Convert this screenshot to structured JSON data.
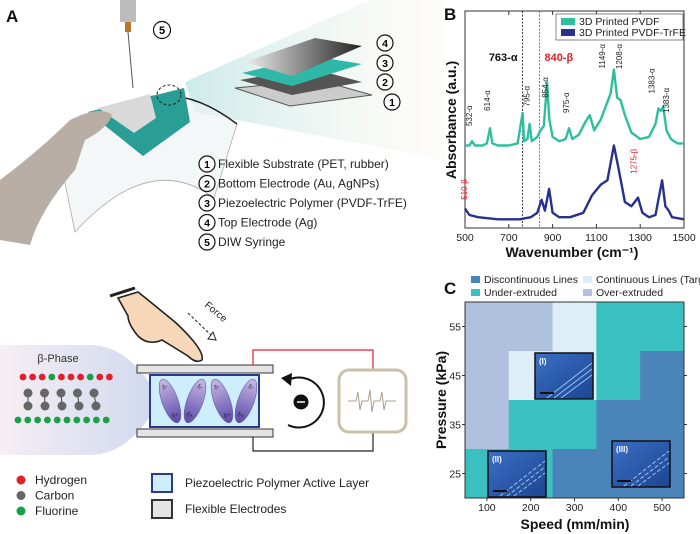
{
  "panels": {
    "a": "A",
    "b": "B",
    "c": "C"
  },
  "panel_a": {
    "syringe_number": "5",
    "layer_numbers": [
      "4",
      "3",
      "2",
      "1"
    ],
    "legend": [
      {
        "num": "1",
        "text": "Flexible Substrate (PET, rubber)"
      },
      {
        "num": "2",
        "text": "Bottom Electrode (Au, AgNPs)"
      },
      {
        "num": "3",
        "text": "Piezoelectric Polymer (PVDF-TrFE)"
      },
      {
        "num": "4",
        "text": "Top Electrode (Ag)"
      },
      {
        "num": "5",
        "text": "DIW Syringe"
      }
    ]
  },
  "schematic": {
    "force_label": "Force",
    "phase_label": "β-Phase",
    "dipole_minus": "δ-",
    "dipole_plus": "δ+",
    "atom_legend": [
      {
        "name": "Hydrogen",
        "color": "#e0202a"
      },
      {
        "name": "Carbon",
        "color": "#666666"
      },
      {
        "name": "Fluorine",
        "color": "#1aa046"
      }
    ],
    "layer_legend": [
      {
        "name": "Piezoelectric Polymer Active Layer",
        "fill": "#cdeefa",
        "stroke": "#2b3a8f"
      },
      {
        "name": "Flexible Electrodes",
        "fill": "#e4e4e4",
        "stroke": "#333333"
      }
    ]
  },
  "chart_data": [
    {
      "type": "line",
      "xlabel": "Wavenumber (cm⁻¹)",
      "ylabel": "Absorbance (a.u.)",
      "xlim": [
        500,
        1500
      ],
      "xticks": [
        500,
        700,
        900,
        1100,
        1300,
        1500
      ],
      "legend_position": "top-right",
      "series": [
        {
          "name": "3D Printed PVDF",
          "color": "#2dbf9e",
          "x": [
            500,
            520,
            532,
            545,
            580,
            600,
            614,
            625,
            650,
            700,
            740,
            763,
            770,
            785,
            795,
            805,
            830,
            845,
            860,
            875,
            885,
            900,
            930,
            960,
            975,
            990,
            1020,
            1050,
            1070,
            1090,
            1120,
            1150,
            1165,
            1180,
            1195,
            1210,
            1230,
            1260,
            1300,
            1340,
            1370,
            1383,
            1395,
            1405,
            1420,
            1440,
            1470,
            1500
          ],
          "y": [
            0.38,
            0.38,
            0.4,
            0.38,
            0.38,
            0.39,
            0.46,
            0.39,
            0.38,
            0.38,
            0.39,
            0.53,
            0.4,
            0.41,
            0.48,
            0.4,
            0.42,
            0.45,
            0.47,
            0.67,
            0.5,
            0.42,
            0.4,
            0.41,
            0.46,
            0.41,
            0.43,
            0.49,
            0.52,
            0.45,
            0.5,
            0.58,
            0.62,
            0.73,
            0.6,
            0.59,
            0.52,
            0.44,
            0.41,
            0.42,
            0.48,
            0.55,
            0.54,
            0.56,
            0.45,
            0.41,
            0.39,
            0.39
          ]
        },
        {
          "name": "3D Printed PVDF-TrFE",
          "color": "#27318f",
          "x": [
            500,
            520,
            560,
            650,
            750,
            800,
            830,
            850,
            865,
            884,
            900,
            930,
            980,
            1040,
            1080,
            1120,
            1150,
            1180,
            1200,
            1230,
            1260,
            1275,
            1290,
            1310,
            1340,
            1370,
            1400,
            1415,
            1430,
            1445,
            1500
          ],
          "y": [
            0.09,
            0.06,
            0.05,
            0.04,
            0.04,
            0.05,
            0.07,
            0.13,
            0.08,
            0.18,
            0.07,
            0.05,
            0.05,
            0.07,
            0.15,
            0.2,
            0.22,
            0.38,
            0.28,
            0.12,
            0.1,
            0.12,
            0.14,
            0.07,
            0.05,
            0.06,
            0.22,
            0.1,
            0.08,
            0.05,
            0.04
          ]
        }
      ],
      "reference_lines": [
        {
          "x": 763,
          "label": "763-α",
          "color": "#111111"
        },
        {
          "x": 840,
          "label": "840-β",
          "color": "#e0202a"
        }
      ],
      "annotations": [
        {
          "text": "532-α",
          "x": 532,
          "y": 0.47,
          "color": "#222222"
        },
        {
          "text": "614-α",
          "x": 614,
          "y": 0.54,
          "color": "#222222"
        },
        {
          "text": "795-α",
          "x": 795,
          "y": 0.56,
          "color": "#222222"
        },
        {
          "text": "854-α",
          "x": 880,
          "y": 0.6,
          "color": "#222222"
        },
        {
          "text": "975-α",
          "x": 975,
          "y": 0.53,
          "color": "#222222"
        },
        {
          "text": "1149-α",
          "x": 1140,
          "y": 0.75,
          "color": "#222222"
        },
        {
          "text": "1208-α",
          "x": 1218,
          "y": 0.77,
          "color": "#222222"
        },
        {
          "text": "1383-α",
          "x": 1365,
          "y": 0.62,
          "color": "#222222"
        },
        {
          "text": "1383-α",
          "x": 1432,
          "y": 0.53,
          "color": "#222222"
        },
        {
          "text": "510-β",
          "x": 510,
          "y": 0.13,
          "color": "#e0202a"
        },
        {
          "text": "1275-β",
          "x": 1282,
          "y": 0.25,
          "color": "#e0202a"
        }
      ]
    },
    {
      "type": "heatmap",
      "xlabel": "Speed (mm/min)",
      "ylabel": "Pressure (kPa)",
      "x": [
        100,
        200,
        300,
        400,
        500
      ],
      "y": [
        55,
        45,
        35,
        25
      ],
      "xlim": [
        50,
        550
      ],
      "ylim": [
        20,
        60
      ],
      "legend_position": "top",
      "categories": [
        {
          "key": "D",
          "name": "Discontinuous Lines",
          "color": "#4a84b8"
        },
        {
          "key": "T",
          "name": "Continuous Lines (Target)",
          "color": "#ddeef6"
        },
        {
          "key": "U",
          "name": "Under-extruded",
          "color": "#3bc0c2"
        },
        {
          "key": "O",
          "name": "Over-extruded",
          "color": "#b0c1dd"
        }
      ],
      "grid": [
        [
          "O",
          "O",
          "T",
          "U",
          "U"
        ],
        [
          "O",
          "T",
          "T",
          "U",
          "D"
        ],
        [
          "O",
          "U",
          "U",
          "D",
          "D"
        ],
        [
          "U",
          "U",
          "D",
          "D",
          "D"
        ]
      ],
      "insets": [
        "(I)",
        "(II)",
        "(III)"
      ]
    }
  ]
}
